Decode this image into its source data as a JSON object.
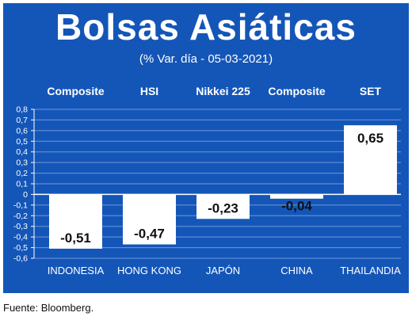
{
  "title": "Bolsas Asiáticas",
  "subtitle": "(% Var. día - 05-03-2021)",
  "source": "Fuente: Bloomberg.",
  "colors": {
    "panel": "#1456b8",
    "bar": "#ffffff",
    "text_light": "#ffffff",
    "text_dark": "#111111",
    "grid": "#6f97d6"
  },
  "chart_data": {
    "type": "bar",
    "categories": [
      "INDONESIA",
      "HONG KONG",
      "JAPÓN",
      "CHINA",
      "THAILANDIA"
    ],
    "index_names": [
      "Composite",
      "HSI",
      "Nikkei 225",
      "Composite",
      "SET"
    ],
    "values": [
      -0.51,
      -0.47,
      -0.23,
      -0.04,
      0.65
    ],
    "value_labels": [
      "-0,51",
      "-0,47",
      "-0,23",
      "-0,04",
      "0,65"
    ],
    "ylim": [
      -0.6,
      0.8
    ],
    "yticks": [
      "0,8",
      "0,7",
      "0,6",
      "0,5",
      "0,4",
      "0,3",
      "0,2",
      "0,1",
      "0",
      "-0,1",
      "-0,2",
      "-0,3",
      "-0,4",
      "-0,5",
      "-0,6"
    ],
    "ytick_values": [
      0.8,
      0.7,
      0.6,
      0.5,
      0.4,
      0.3,
      0.2,
      0.1,
      0,
      -0.1,
      -0.2,
      -0.3,
      -0.4,
      -0.5,
      -0.6
    ],
    "grid": true,
    "legend": "none"
  }
}
